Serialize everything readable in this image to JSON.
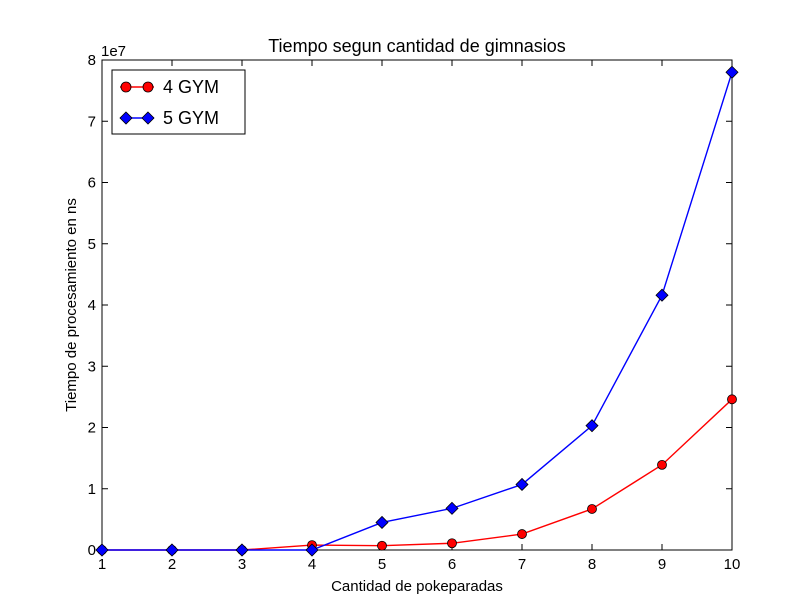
{
  "chart_data": {
    "type": "line",
    "title": "Tiempo segun cantidad de gimnasios",
    "xlabel": "Cantidad de pokeparadas",
    "ylabel": "Tiempo de procesamiento en ns",
    "offset_label": "1e7",
    "x": [
      1,
      2,
      3,
      4,
      5,
      6,
      7,
      8,
      9,
      10
    ],
    "xlim": [
      1,
      10
    ],
    "ylim": [
      0,
      8
    ],
    "x_ticks": [
      "1",
      "2",
      "3",
      "4",
      "5",
      "6",
      "7",
      "8",
      "9",
      "10"
    ],
    "y_ticks": [
      "0",
      "1",
      "2",
      "3",
      "4",
      "5",
      "6",
      "7",
      "8"
    ],
    "grid": false,
    "legend_position": "top-left",
    "series": [
      {
        "name": "4 GYM",
        "color": "#ff0000",
        "marker": "circle",
        "values": [
          0.0,
          0.0,
          0.0,
          0.08,
          0.07,
          0.11,
          0.26,
          0.67,
          1.39,
          2.46
        ]
      },
      {
        "name": "5 GYM",
        "color": "#0000ff",
        "marker": "diamond",
        "values": [
          0.0,
          0.0,
          0.0,
          0.0,
          0.45,
          0.68,
          1.07,
          2.03,
          4.16,
          7.8
        ]
      }
    ]
  }
}
